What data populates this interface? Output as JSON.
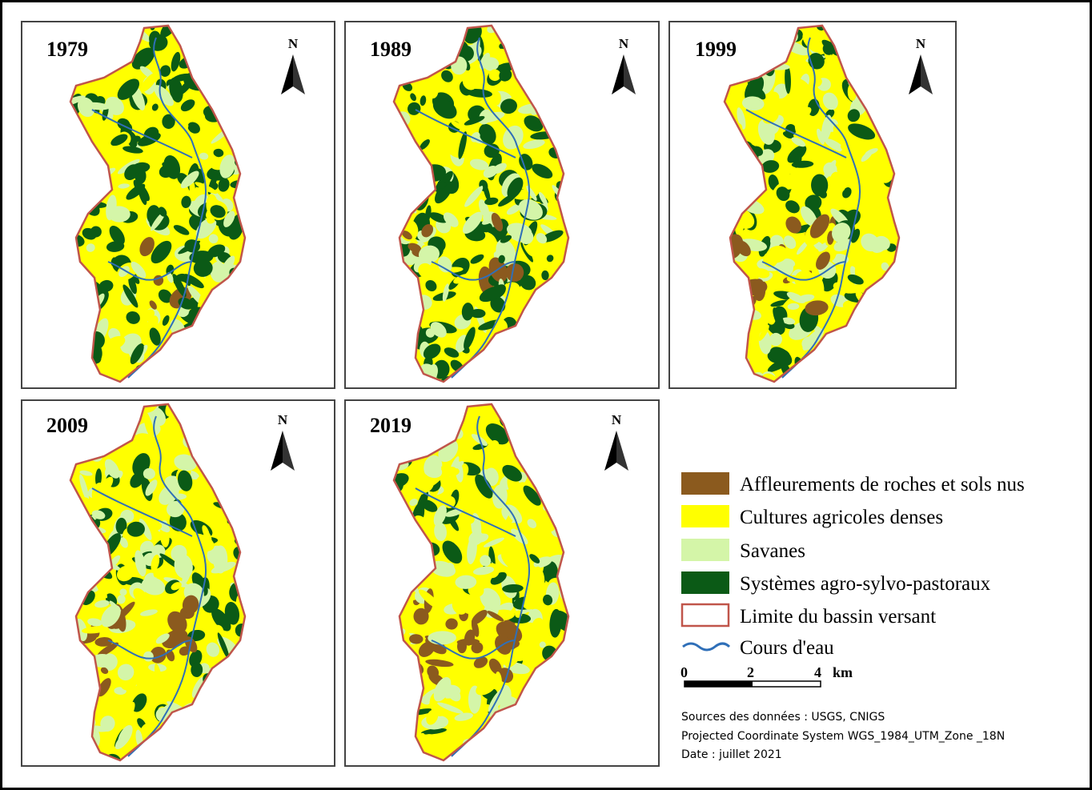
{
  "panels": [
    {
      "year": "1979",
      "north": "N"
    },
    {
      "year": "1989",
      "north": "N"
    },
    {
      "year": "1999",
      "north": "N"
    },
    {
      "year": "2009",
      "north": "N"
    },
    {
      "year": "2019",
      "north": "N"
    }
  ],
  "legend": {
    "items": [
      {
        "label": "Affleurements de roches et sols nus"
      },
      {
        "label": "Cultures agricoles denses"
      },
      {
        "label": "Savanes"
      },
      {
        "label": "Systèmes agro-sylvo-pastoraux"
      },
      {
        "label": "Limite du bassin versant"
      },
      {
        "label": "Cours d'eau"
      }
    ]
  },
  "scale": {
    "ticks": [
      "0",
      "2",
      "4"
    ],
    "unit": "km"
  },
  "sources": [
    "Sources des données : USGS, CNIGS",
    "Projected Coordinate System WGS_1984_UTM_Zone _18N",
    "Date : juillet 2021"
  ]
}
